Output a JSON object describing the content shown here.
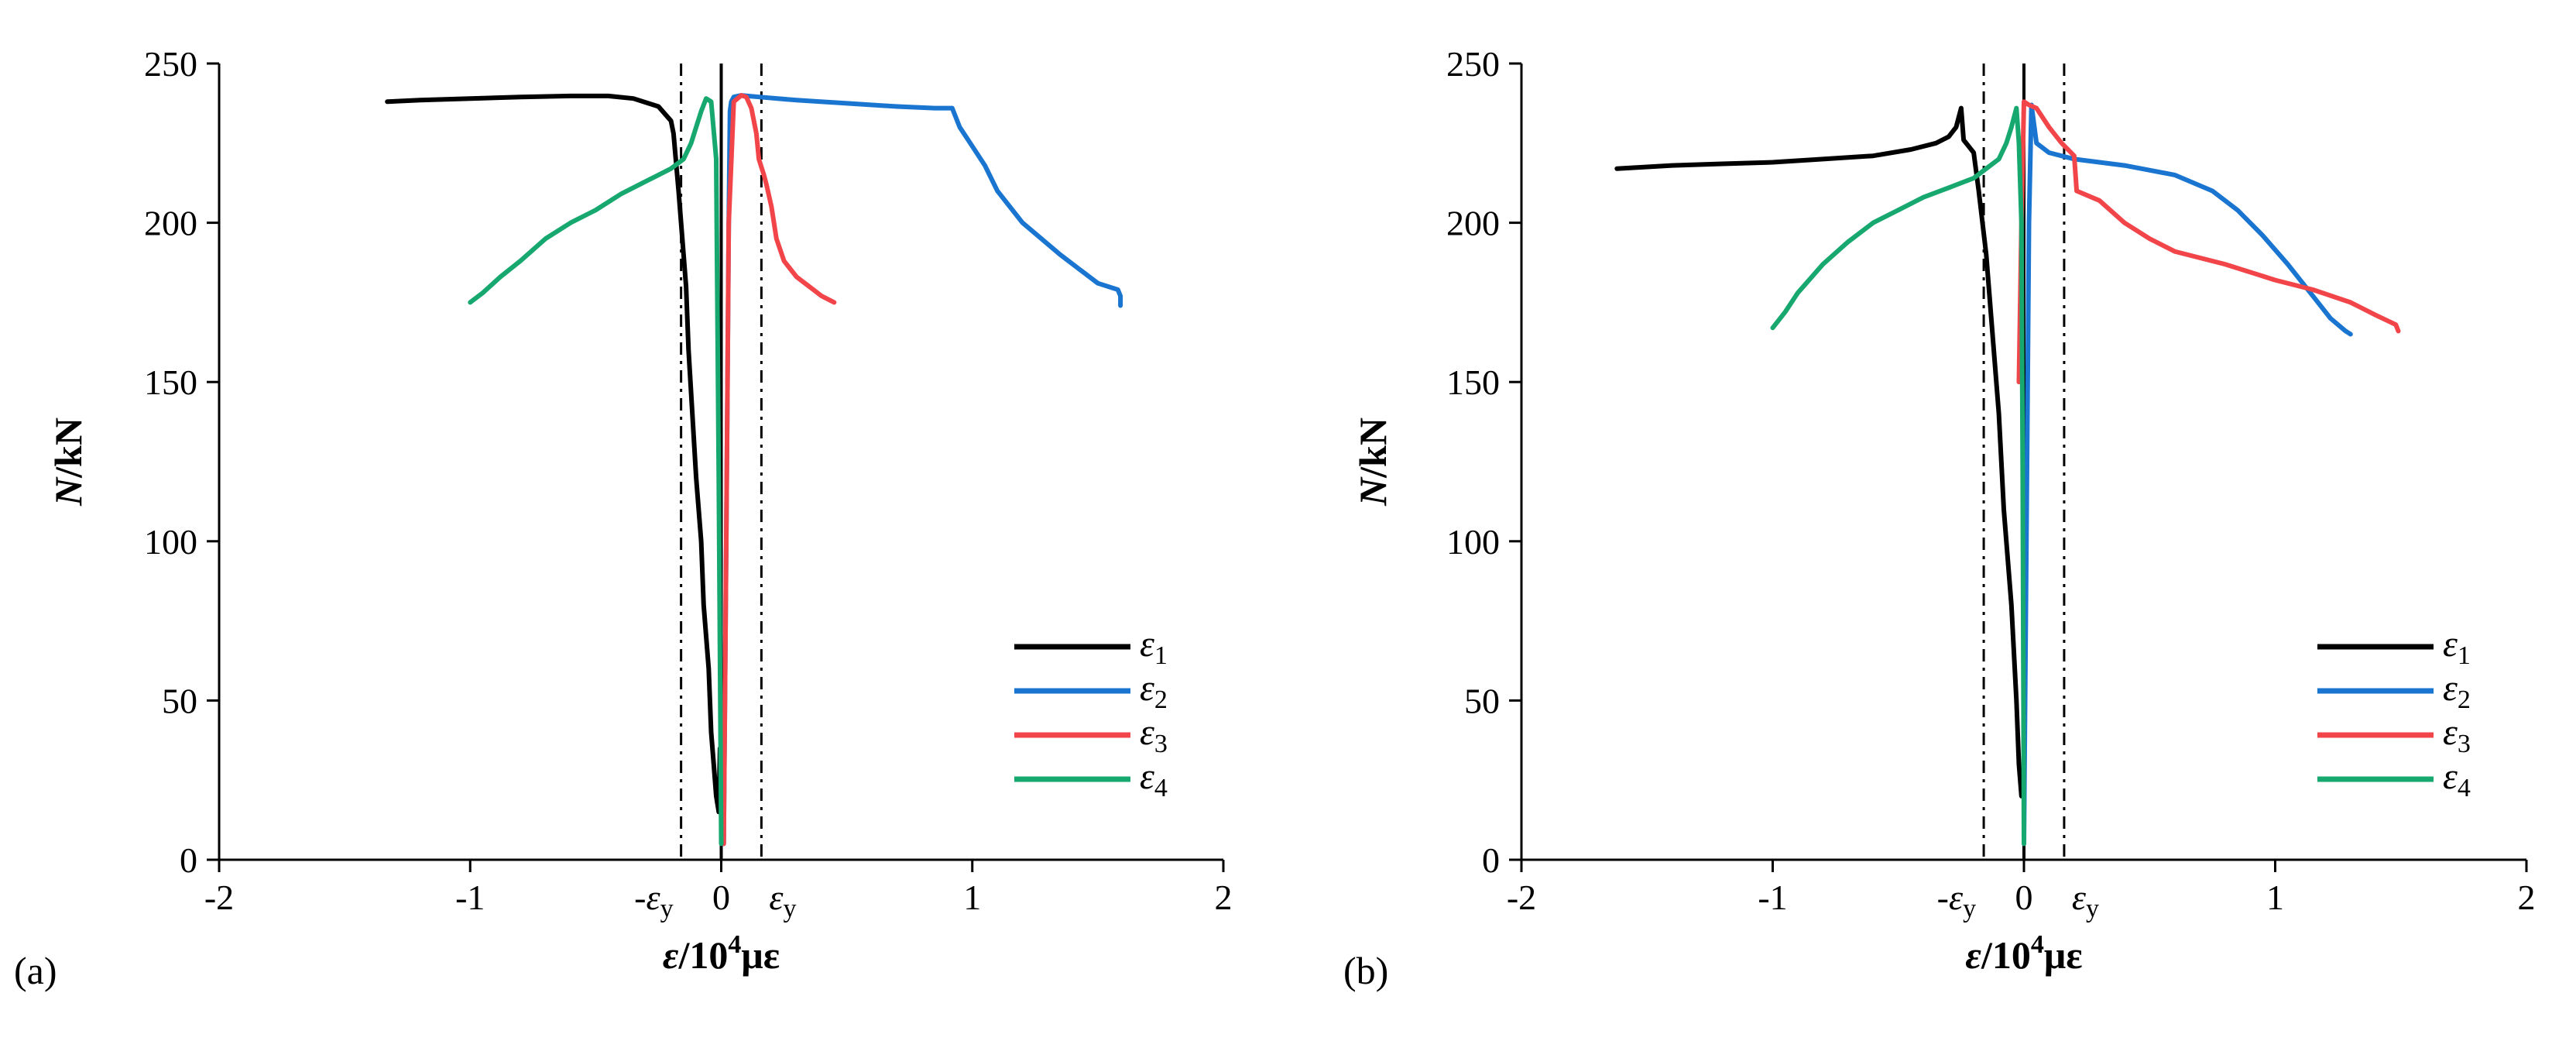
{
  "chart_data": [
    {
      "type": "line",
      "panel_label": "(a)",
      "xlabel": "ε/10⁴με",
      "xlabel_parts": {
        "symbol": "ε",
        "text": "/10",
        "sup": "4",
        "unit": "με"
      },
      "ylabel": "N/kN",
      "ylabel_parts": {
        "symbol": "N",
        "text": "/kN"
      },
      "xlim": [
        -2,
        2
      ],
      "ylim": [
        0,
        250
      ],
      "xticks": [
        -2,
        -1,
        0,
        1,
        2
      ],
      "xtick_labels": [
        "-2",
        "-1",
        "0",
        "1",
        "2"
      ],
      "yticks": [
        0,
        50,
        100,
        150,
        200,
        250
      ],
      "ytick_labels": [
        "0",
        "50",
        "100",
        "150",
        "200",
        "250"
      ],
      "reference_lines": [
        {
          "x": -0.16,
          "label_symbol": "-ε",
          "label_sub": "y",
          "style": "dash-dot"
        },
        {
          "x": 0,
          "style": "solid"
        },
        {
          "x": 0.16,
          "label_symbol": "ε",
          "label_sub": "y",
          "style": "dash-dot"
        }
      ],
      "legend": {
        "position": "bottom-right"
      },
      "series": [
        {
          "name": "ε",
          "sub": "1",
          "color": "#000000",
          "x": [
            -1.33,
            -1.2,
            -1.0,
            -0.8,
            -0.6,
            -0.45,
            -0.35,
            -0.25,
            -0.2,
            -0.19,
            -0.17,
            -0.14,
            -0.13,
            -0.115,
            -0.1,
            -0.08,
            -0.07,
            -0.05,
            -0.04,
            -0.03,
            -0.02,
            -0.01,
            -0.005
          ],
          "y": [
            238,
            238.5,
            239,
            239.5,
            239.8,
            239.8,
            239,
            236.5,
            232,
            228,
            210,
            180,
            160,
            140,
            120,
            100,
            80,
            60,
            40,
            30,
            20,
            15,
            35
          ]
        },
        {
          "name": "ε",
          "sub": "2",
          "color": "#1a75d1",
          "x": [
            0.01,
            0.02,
            0.03,
            0.035,
            0.04,
            0.05,
            0.08,
            0.15,
            0.3,
            0.5,
            0.7,
            0.85,
            0.92,
            0.95,
            1.0,
            1.05,
            1.1,
            1.2,
            1.35,
            1.5,
            1.58,
            1.59,
            1.59
          ],
          "y": [
            5,
            100,
            200,
            235,
            238,
            239.5,
            240,
            239.5,
            238.5,
            237.5,
            236.5,
            236,
            236,
            230,
            224,
            218,
            210,
            200,
            190,
            181,
            179,
            177,
            174
          ]
        },
        {
          "name": "ε",
          "sub": "3",
          "color": "#f2454a",
          "x": [
            0.01,
            0.02,
            0.03,
            0.05,
            0.08,
            0.1,
            0.12,
            0.14,
            0.15,
            0.17,
            0.18,
            0.2,
            0.22,
            0.25,
            0.3,
            0.35,
            0.4,
            0.45
          ],
          "y": [
            5,
            100,
            200,
            238,
            240,
            239.5,
            236,
            228,
            220,
            215,
            212,
            205,
            195,
            188,
            183,
            180,
            177,
            175
          ]
        },
        {
          "name": "ε",
          "sub": "4",
          "color": "#16a86f",
          "x": [
            -1.0,
            -0.95,
            -0.88,
            -0.8,
            -0.7,
            -0.6,
            -0.5,
            -0.4,
            -0.3,
            -0.25,
            -0.2,
            -0.15,
            -0.12,
            -0.1,
            -0.08,
            -0.06,
            -0.04,
            -0.02,
            -0.01,
            0.0
          ],
          "y": [
            175,
            178,
            183,
            188,
            195,
            200,
            204,
            209,
            213,
            215,
            217,
            220,
            225,
            230,
            235,
            239,
            238,
            220,
            120,
            5
          ]
        }
      ]
    },
    {
      "type": "line",
      "panel_label": "(b)",
      "xlabel": "ε/10⁴με",
      "xlabel_parts": {
        "symbol": "ε",
        "text": "/10",
        "sup": "4",
        "unit": "με"
      },
      "ylabel": "N/kN",
      "ylabel_parts": {
        "symbol": "N",
        "text": "/kN"
      },
      "xlim": [
        -2,
        2
      ],
      "ylim": [
        0,
        250
      ],
      "xticks": [
        -2,
        -1,
        0,
        1,
        2
      ],
      "xtick_labels": [
        "-2",
        "-1",
        "0",
        "1",
        "2"
      ],
      "yticks": [
        0,
        50,
        100,
        150,
        200,
        250
      ],
      "ytick_labels": [
        "0",
        "50",
        "100",
        "150",
        "200",
        "250"
      ],
      "reference_lines": [
        {
          "x": -0.16,
          "label_symbol": "-ε",
          "label_sub": "y",
          "style": "dash-dot"
        },
        {
          "x": 0,
          "style": "solid"
        },
        {
          "x": 0.16,
          "label_symbol": "ε",
          "label_sub": "y",
          "style": "dash-dot"
        }
      ],
      "legend": {
        "position": "bottom-right"
      },
      "series": [
        {
          "name": "ε",
          "sub": "1",
          "color": "#000000",
          "x": [
            -1.62,
            -1.4,
            -1.2,
            -1.0,
            -0.8,
            -0.6,
            -0.45,
            -0.35,
            -0.3,
            -0.27,
            -0.25,
            -0.24,
            -0.22,
            -0.2,
            -0.18,
            -0.15,
            -0.13,
            -0.1,
            -0.08,
            -0.05,
            -0.03,
            -0.02,
            -0.01
          ],
          "y": [
            217,
            218,
            218.5,
            219,
            220,
            221,
            223,
            225,
            227,
            230,
            236,
            226,
            224,
            222,
            210,
            190,
            170,
            140,
            110,
            80,
            50,
            30,
            20
          ]
        },
        {
          "name": "ε",
          "sub": "2",
          "color": "#1a75d1",
          "x": [
            0.0,
            0.01,
            0.02,
            0.03,
            0.05,
            0.1,
            0.2,
            0.4,
            0.6,
            0.75,
            0.85,
            0.95,
            1.05,
            1.15,
            1.22,
            1.28,
            1.3
          ],
          "y": [
            5,
            100,
            200,
            237,
            225,
            222,
            220,
            218,
            215,
            210,
            204,
            196,
            187,
            177,
            170,
            166,
            165
          ]
        },
        {
          "name": "ε",
          "sub": "3",
          "color": "#f2454a",
          "x": [
            -0.02,
            -0.01,
            0.0,
            0.02,
            0.05,
            0.1,
            0.15,
            0.2,
            0.21,
            0.3,
            0.4,
            0.5,
            0.6,
            0.8,
            1.0,
            1.15,
            1.3,
            1.4,
            1.48,
            1.49
          ],
          "y": [
            150,
            200,
            238,
            237,
            236,
            230,
            225,
            221,
            210,
            207,
            200,
            195,
            191,
            187,
            182,
            179,
            175,
            171,
            168,
            166
          ]
        },
        {
          "name": "ε",
          "sub": "4",
          "color": "#16a86f",
          "x": [
            -1.0,
            -0.95,
            -0.9,
            -0.8,
            -0.7,
            -0.6,
            -0.5,
            -0.4,
            -0.3,
            -0.2,
            -0.15,
            -0.1,
            -0.07,
            -0.05,
            -0.03,
            -0.02,
            -0.01,
            -0.005,
            0.0
          ],
          "y": [
            167,
            172,
            178,
            187,
            194,
            200,
            204,
            208,
            211,
            214,
            217,
            220,
            225,
            230,
            236,
            225,
            200,
            120,
            5
          ]
        }
      ]
    }
  ]
}
